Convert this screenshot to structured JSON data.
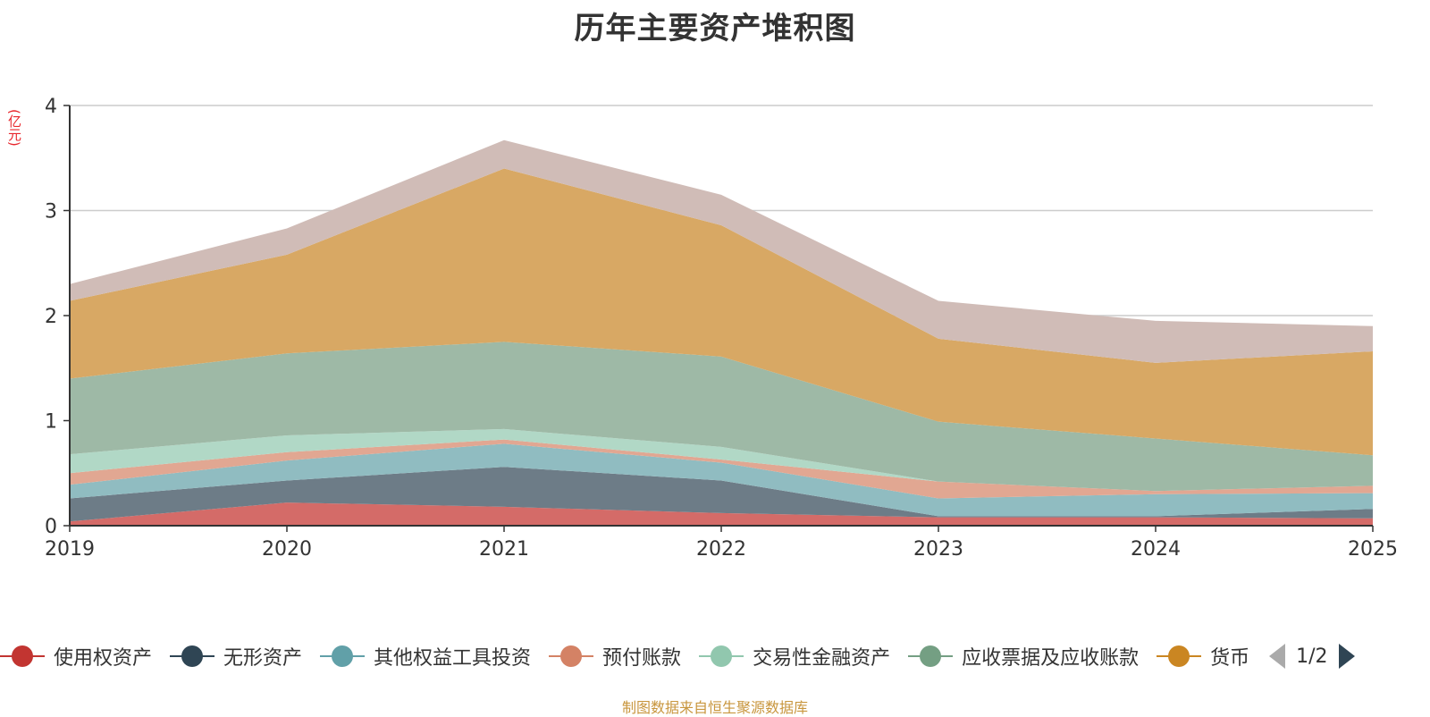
{
  "title": "历年主要资产堆积图",
  "footer": "制图数据来自恒生聚源数据库",
  "pager": {
    "text": "1/2"
  },
  "chart_data": {
    "type": "area",
    "stacked": true,
    "title": "历年主要资产堆积图",
    "ylabel": "(亿元)",
    "xlabel": "",
    "ylim": [
      0,
      4
    ],
    "yticks": [
      0,
      1,
      2,
      3,
      4
    ],
    "grid": true,
    "legend_position": "bottom",
    "categories": [
      "2019",
      "2020",
      "2021",
      "2022",
      "2023",
      "2024",
      "2025"
    ],
    "series": [
      {
        "name": "使用权资产",
        "color": "#c23531",
        "fill": "#d46b68",
        "values": [
          0.04,
          0.22,
          0.18,
          0.12,
          0.08,
          0.08,
          0.07
        ]
      },
      {
        "name": "无形资产",
        "color": "#2f4554",
        "fill": "#6d7c87",
        "values": [
          0.22,
          0.21,
          0.38,
          0.31,
          0.01,
          0.01,
          0.09
        ]
      },
      {
        "name": "其他权益工具投资",
        "color": "#61a0a8",
        "fill": "#90bcc1",
        "values": [
          0.13,
          0.19,
          0.22,
          0.17,
          0.17,
          0.21,
          0.15
        ]
      },
      {
        "name": "预付账款",
        "color": "#d48265",
        "fill": "#e1a792",
        "values": [
          0.11,
          0.08,
          0.04,
          0.03,
          0.16,
          0.03,
          0.07
        ]
      },
      {
        "name": "交易性金融资产",
        "color": "#91c7ae",
        "fill": "#b1d8c6",
        "values": [
          0.18,
          0.16,
          0.1,
          0.12,
          0.0,
          0.0,
          0.0
        ]
      },
      {
        "name": "应收票据及应收账款",
        "color": "#749f83",
        "fill": "#9eb9a6",
        "values": [
          0.72,
          0.78,
          0.83,
          0.86,
          0.57,
          0.5,
          0.29
        ]
      },
      {
        "name": "货币",
        "color": "#ca8622",
        "fill": "#d8a864",
        "values": [
          0.74,
          0.94,
          1.65,
          1.25,
          0.79,
          0.72,
          0.99
        ]
      },
      {
        "name": "",
        "color": "#bda29a",
        "fill": "#d0bcb7",
        "values": [
          0.16,
          0.25,
          0.27,
          0.29,
          0.36,
          0.4,
          0.24
        ],
        "legend_hidden": true
      }
    ]
  }
}
